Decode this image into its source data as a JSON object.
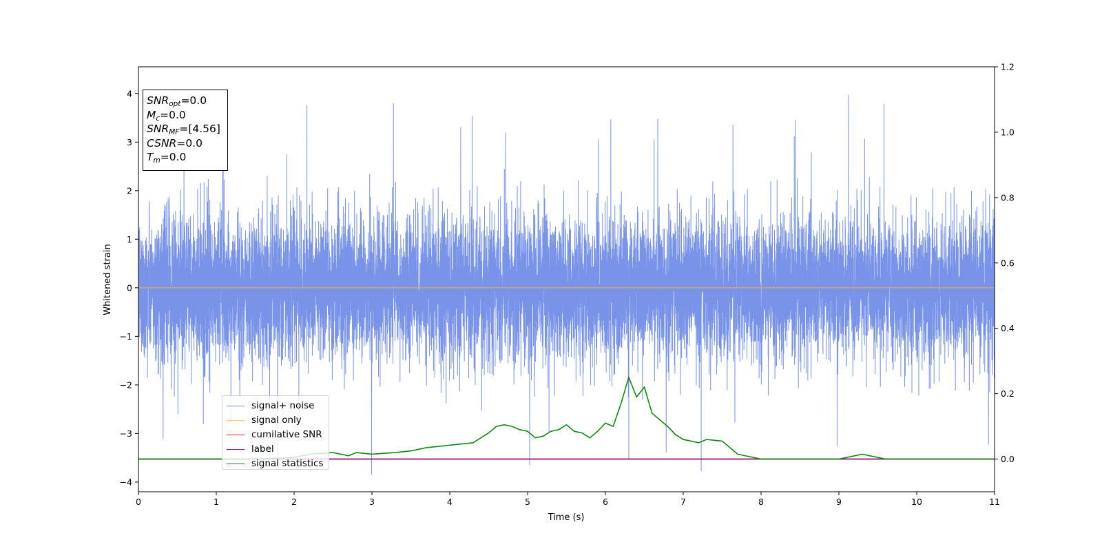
{
  "chart_data": {
    "type": "line",
    "xlabel": "Time (s)",
    "ylabel": "Whitened strain",
    "xlim": [
      0,
      11
    ],
    "ylim": [
      -4.2,
      4.55
    ],
    "y2lim": [
      -0.1,
      1.2
    ],
    "x_ticks": [
      "0",
      "1",
      "2",
      "3",
      "4",
      "5",
      "6",
      "7",
      "8",
      "9",
      "10",
      "11"
    ],
    "y_ticks": [
      "−4",
      "−3",
      "−2",
      "−1",
      "0",
      "1",
      "2",
      "3",
      "4"
    ],
    "y2_ticks": [
      "0.0",
      "0.2",
      "0.4",
      "0.6",
      "0.8",
      "1.0",
      "1.2"
    ],
    "grid": false,
    "legend_position": "lower-left",
    "info_box": [
      {
        "name": "SNR",
        "sub": "opt",
        "value": "=0.0"
      },
      {
        "name": "M",
        "sub": "c",
        "value": "=0.0"
      },
      {
        "name": "SNR",
        "sub": "MF",
        "value": "=[4.56]"
      },
      {
        "name": "CSNR",
        "sub": "",
        "value": "=0.0"
      },
      {
        "name": "T",
        "sub": "m",
        "value": "=0.0"
      }
    ],
    "series": [
      {
        "name": "signal+ noise",
        "color": "#7893e8",
        "axis": "left",
        "description": "whitened noise, roughly uniform with |y| up to about 2.5, spikes up to about 4.2",
        "x_range": [
          0,
          11
        ],
        "envelope_upper_typical": 2.1,
        "envelope_lower_typical": -2.2
      },
      {
        "name": "signal only",
        "color": "#ffcc66",
        "axis": "left",
        "x": [
          0,
          11
        ],
        "y": [
          0,
          0
        ]
      },
      {
        "name": "cumilative SNR",
        "color": "#ee1111",
        "axis": "right",
        "x": [
          0,
          11
        ],
        "y": [
          0,
          0
        ]
      },
      {
        "name": "label",
        "color": "#7b0f8a",
        "axis": "right",
        "x": [
          0,
          11
        ],
        "y": [
          0,
          0
        ]
      },
      {
        "name": "signal statistics",
        "color": "#118811",
        "axis": "right",
        "x": [
          0,
          0.5,
          1,
          1.5,
          2,
          2.2,
          2.5,
          2.7,
          2.8,
          3.0,
          3.3,
          3.5,
          3.7,
          3.9,
          4.1,
          4.3,
          4.5,
          4.6,
          4.7,
          4.8,
          4.9,
          5.0,
          5.1,
          5.2,
          5.3,
          5.4,
          5.5,
          5.6,
          5.7,
          5.8,
          5.9,
          6.0,
          6.1,
          6.2,
          6.3,
          6.4,
          6.5,
          6.6,
          6.7,
          6.8,
          6.9,
          7.0,
          7.2,
          7.3,
          7.5,
          7.7,
          8.0,
          8.5,
          9.0,
          9.3,
          9.6,
          10.0,
          10.5,
          11.0
        ],
        "y": [
          0.0,
          0.0,
          0.0,
          0.0,
          0.005,
          0.015,
          0.02,
          0.01,
          0.02,
          0.015,
          0.02,
          0.025,
          0.035,
          0.04,
          0.045,
          0.05,
          0.08,
          0.1,
          0.105,
          0.1,
          0.09,
          0.085,
          0.065,
          0.07,
          0.085,
          0.09,
          0.105,
          0.085,
          0.08,
          0.065,
          0.085,
          0.11,
          0.1,
          0.17,
          0.25,
          0.19,
          0.22,
          0.14,
          0.12,
          0.1,
          0.075,
          0.06,
          0.05,
          0.06,
          0.055,
          0.015,
          0.0,
          0.0,
          0.0,
          0.015,
          0.0,
          0.0,
          0.0,
          0.0
        ]
      }
    ]
  }
}
